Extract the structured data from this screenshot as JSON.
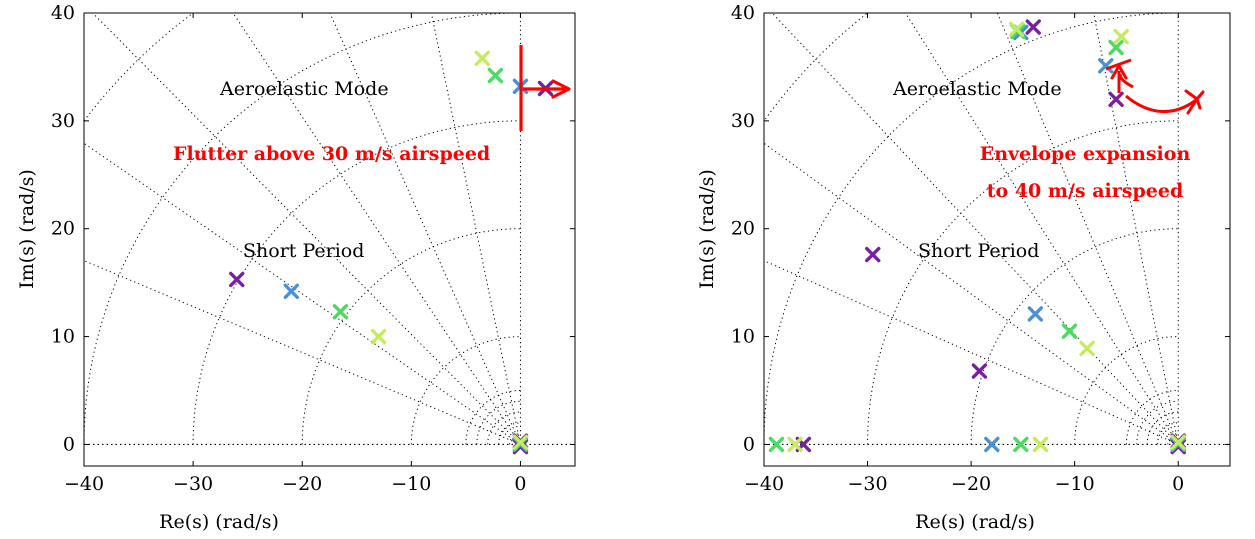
{
  "colors": {
    "purple": "#7b1fa2",
    "blue": "#4a90d9",
    "green": "#4cd964",
    "lime": "#c5ec5f",
    "annotation_red": "#ff0000",
    "grid": "#000000"
  },
  "chart_data": [
    {
      "type": "scatter",
      "xlabel": "Re(s) (rad/s)",
      "ylabel": "Im(s) (rad/s)",
      "xlim": [
        -40,
        5
      ],
      "ylim": [
        -2,
        40
      ],
      "xticks": [
        -40,
        -30,
        -20,
        -10,
        0
      ],
      "yticks": [
        0,
        10,
        20,
        30,
        40
      ],
      "xtick_labels": [
        "−40",
        "−30",
        "−20",
        "−10",
        "0"
      ],
      "ytick_labels": [
        "0",
        "10",
        "20",
        "30",
        "40"
      ],
      "grid": "polar (dotted)",
      "series": [
        {
          "color": "purple",
          "points": [
            [
              2.3,
              33.0
            ],
            [
              -26.0,
              15.3
            ],
            [
              0,
              0.3
            ],
            [
              0,
              -0.2
            ]
          ]
        },
        {
          "color": "blue",
          "points": [
            [
              0,
              33.2
            ],
            [
              -21.0,
              14.2
            ],
            [
              0,
              0
            ]
          ]
        },
        {
          "color": "green",
          "points": [
            [
              -2.3,
              34.2
            ],
            [
              -16.5,
              12.3
            ],
            [
              0,
              0.1
            ]
          ]
        },
        {
          "color": "lime",
          "points": [
            [
              -3.5,
              35.8
            ],
            [
              -13.0,
              10.0
            ],
            [
              0,
              0.2
            ]
          ]
        }
      ],
      "annotations": {
        "aeroelastic": "Aeroelastic Mode",
        "short_period": "Short Period",
        "flutter": "Flutter above 30 m/s airspeed"
      }
    },
    {
      "type": "scatter",
      "xlabel": "Re(s) (rad/s)",
      "ylabel": "Im(s) (rad/s)",
      "xlim": [
        -40,
        5
      ],
      "ylim": [
        -2,
        40
      ],
      "xticks": [
        -40,
        -30,
        -20,
        -10,
        0
      ],
      "yticks": [
        0,
        10,
        20,
        30,
        40
      ],
      "xtick_labels": [
        "−40",
        "−30",
        "−20",
        "−10",
        "0"
      ],
      "ytick_labels": [
        "0",
        "10",
        "20",
        "30",
        "40"
      ],
      "grid": "polar (dotted)",
      "series": [
        {
          "color": "purple",
          "points": [
            [
              -14.0,
              38.7
            ],
            [
              -6.0,
              32.0
            ],
            [
              -29.5,
              17.6
            ],
            [
              -19.2,
              6.8
            ],
            [
              -36.2,
              0
            ],
            [
              0,
              0.3
            ],
            [
              0,
              -0.2
            ]
          ]
        },
        {
          "color": "blue",
          "points": [
            [
              -15.2,
              38.2
            ],
            [
              -7.0,
              35.1
            ],
            [
              -13.8,
              12.1
            ],
            [
              -18.0,
              0
            ],
            [
              0,
              0
            ]
          ]
        },
        {
          "color": "green",
          "points": [
            [
              -15.5,
              38.3
            ],
            [
              -6.0,
              36.8
            ],
            [
              -10.5,
              10.5
            ],
            [
              -38.8,
              0
            ],
            [
              -15.2,
              0
            ],
            [
              0,
              0.1
            ]
          ]
        },
        {
          "color": "lime",
          "points": [
            [
              -15.6,
              38.5
            ],
            [
              -5.5,
              37.8
            ],
            [
              -8.8,
              8.9
            ],
            [
              -37.0,
              0
            ],
            [
              -13.3,
              0
            ],
            [
              0,
              0.2
            ]
          ]
        }
      ],
      "annotations": {
        "aeroelastic": "Aeroelastic Mode",
        "short_period": "Short Period",
        "envelope_line1": "Envelope expansion",
        "envelope_line2": "to 40 m/s airspeed"
      }
    }
  ]
}
